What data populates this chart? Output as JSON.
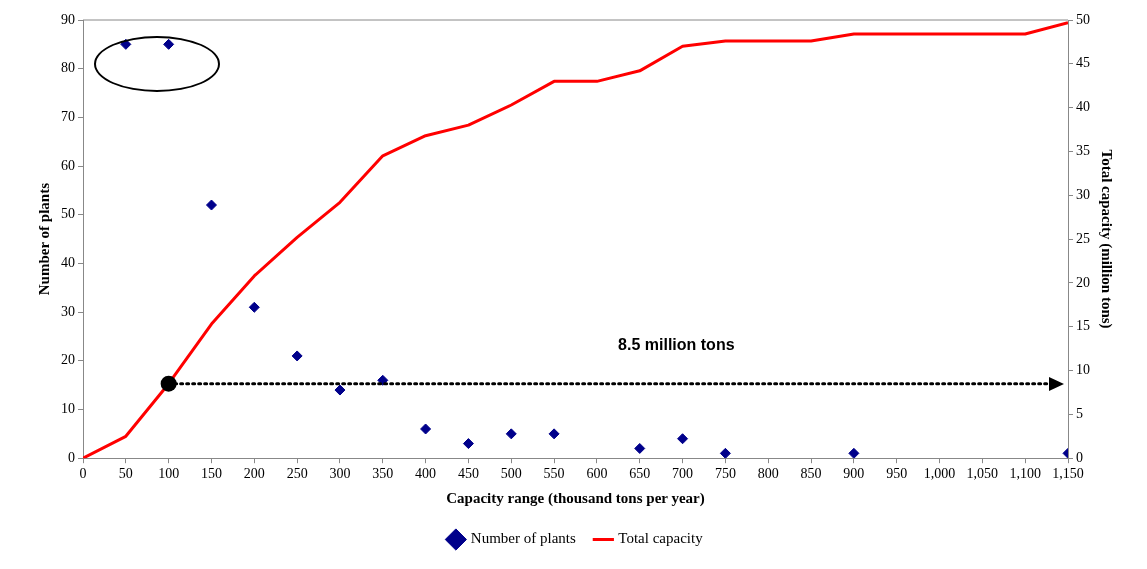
{
  "chart_data": {
    "type": "scatter",
    "xlabel": "Capacity range (thousand tons per year)",
    "ylabel": "Number of plants",
    "y2label": "Total capacity (million tons)",
    "xlim": [
      0,
      1150
    ],
    "xticks": [
      0,
      50,
      100,
      150,
      200,
      250,
      300,
      350,
      400,
      450,
      500,
      550,
      600,
      650,
      700,
      750,
      800,
      850,
      900,
      950,
      {
        "value": 1000,
        "label": "1,000"
      },
      {
        "value": 1050,
        "label": "1,050"
      },
      {
        "value": 1100,
        "label": "1,100"
      },
      {
        "value": 1150,
        "label": "1,150"
      }
    ],
    "ylim": [
      0,
      90
    ],
    "yticks": [
      0,
      10,
      20,
      30,
      40,
      50,
      60,
      70,
      80,
      90
    ],
    "y2lim": [
      0,
      50
    ],
    "y2ticks": [
      0,
      5,
      10,
      15,
      20,
      25,
      30,
      35,
      40,
      45,
      50
    ],
    "grid": false,
    "legend": "bottom",
    "series": [
      {
        "name": "Number of plants",
        "type": "scatter",
        "marker": "diamond",
        "color": "#00008b",
        "x": [
          50,
          100,
          150,
          200,
          250,
          300,
          350,
          400,
          450,
          500,
          550,
          650,
          700,
          750,
          900,
          1150
        ],
        "values": [
          85,
          85,
          52,
          31,
          21,
          14,
          16,
          6,
          3,
          5,
          5,
          2,
          4,
          1,
          1,
          1
        ]
      },
      {
        "name": "Total capacity",
        "type": "line",
        "marker": "none",
        "axis": "y2",
        "color": "#ff0000",
        "x": [
          0,
          50,
          100,
          150,
          200,
          250,
          300,
          350,
          400,
          450,
          500,
          550,
          600,
          650,
          700,
          750,
          800,
          850,
          900,
          950,
          1000,
          1050,
          1100,
          1150
        ],
        "values": [
          0,
          2.5,
          8.5,
          15.3,
          20.8,
          25.2,
          29.2,
          34.5,
          36.8,
          38,
          40.3,
          43,
          43,
          44.2,
          47,
          47.6,
          47.6,
          47.6,
          48.4,
          48.4,
          48.4,
          48.4,
          48.4,
          49.7
        ]
      }
    ],
    "ref_lines": [
      {
        "axis": "y2",
        "value": 8.5,
        "label": "8.5 million tons",
        "color": "#000000",
        "line_style": "dotted"
      }
    ]
  }
}
